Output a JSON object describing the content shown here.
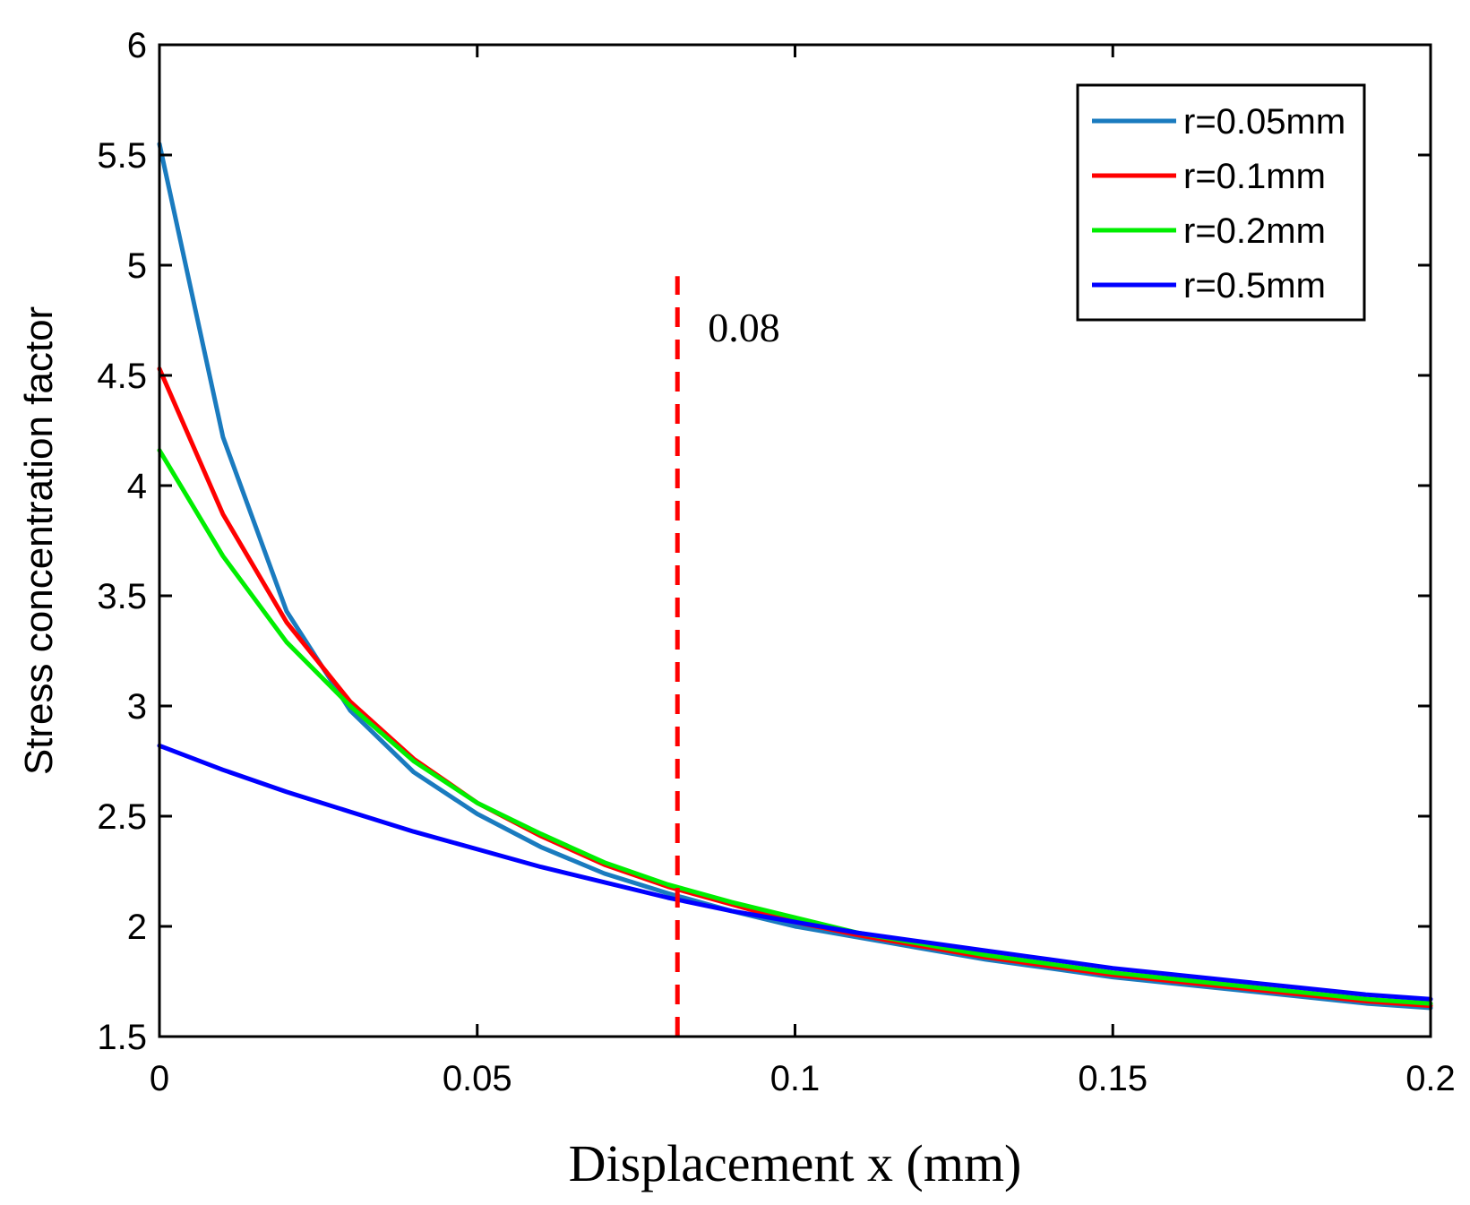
{
  "chart_data": {
    "type": "line",
    "title": "",
    "xlabel": "Displacement x (mm)",
    "ylabel": "Stress concentration factor",
    "xlim": [
      0,
      0.2
    ],
    "ylim": [
      1.5,
      6
    ],
    "xticks": [
      0,
      0.05,
      0.1,
      0.15,
      0.2
    ],
    "xtick_labels": [
      "0",
      "0.05",
      "0.1",
      "0.15",
      "0.2"
    ],
    "yticks": [
      1.5,
      2,
      2.5,
      3,
      3.5,
      4,
      4.5,
      5,
      5.5,
      6
    ],
    "ytick_labels": [
      "1.5",
      "2",
      "2.5",
      "3",
      "3.5",
      "4",
      "4.5",
      "5",
      "5.5",
      "6"
    ],
    "grid": false,
    "legend_position": "top-right",
    "x": [
      0,
      0.01,
      0.02,
      0.03,
      0.04,
      0.05,
      0.06,
      0.07,
      0.08,
      0.09,
      0.1,
      0.11,
      0.12,
      0.13,
      0.14,
      0.15,
      0.16,
      0.17,
      0.18,
      0.19,
      0.2
    ],
    "series": [
      {
        "name": "r=0.05mm",
        "color": "#1a7bbf",
        "values": [
          5.55,
          4.22,
          3.43,
          2.98,
          2.7,
          2.51,
          2.36,
          2.24,
          2.15,
          2.07,
          2.0,
          1.95,
          1.9,
          1.85,
          1.81,
          1.77,
          1.74,
          1.71,
          1.68,
          1.65,
          1.63
        ]
      },
      {
        "name": "r=0.1mm",
        "color": "#ff0000",
        "values": [
          4.53,
          3.87,
          3.38,
          3.02,
          2.76,
          2.56,
          2.41,
          2.28,
          2.18,
          2.1,
          2.02,
          1.96,
          1.91,
          1.86,
          1.82,
          1.78,
          1.75,
          1.72,
          1.69,
          1.66,
          1.64
        ]
      },
      {
        "name": "r=0.2mm",
        "color": "#00ee00",
        "values": [
          4.16,
          3.68,
          3.29,
          3.0,
          2.75,
          2.56,
          2.42,
          2.29,
          2.19,
          2.11,
          2.04,
          1.97,
          1.92,
          1.87,
          1.83,
          1.79,
          1.76,
          1.73,
          1.7,
          1.67,
          1.65
        ]
      },
      {
        "name": "r=0.5mm",
        "color": "#0000ff",
        "values": [
          2.82,
          2.71,
          2.61,
          2.52,
          2.43,
          2.35,
          2.27,
          2.2,
          2.13,
          2.07,
          2.02,
          1.97,
          1.93,
          1.89,
          1.85,
          1.81,
          1.78,
          1.75,
          1.72,
          1.69,
          1.67
        ]
      }
    ],
    "annotations": [
      {
        "type": "vline",
        "x": 0.0815,
        "y_from": 1.5,
        "y_to": 4.95,
        "color": "#ff0000",
        "style": "dashed",
        "label": "0.08",
        "label_y": 4.72
      }
    ]
  }
}
